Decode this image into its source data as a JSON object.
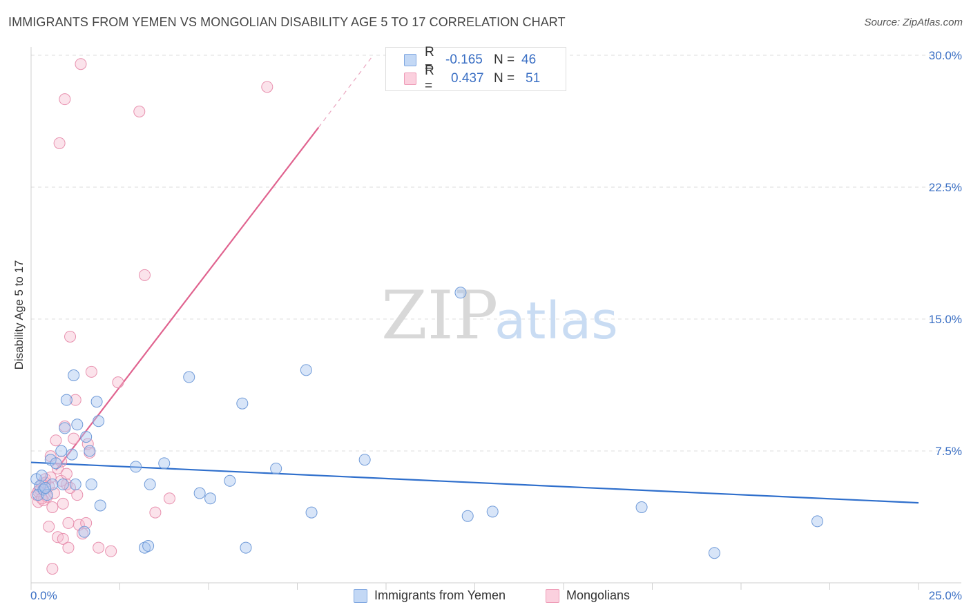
{
  "header": {
    "title": "IMMIGRANTS FROM YEMEN VS MONGOLIAN DISABILITY AGE 5 TO 17 CORRELATION CHART",
    "source": "Source: ZipAtlas.com"
  },
  "watermark": {
    "zip": "ZIP",
    "atlas": "atlas"
  },
  "legend_top": {
    "rows": [
      {
        "r_label": "R =",
        "r_value": "-0.165",
        "n_label": "N =",
        "n_value": "46",
        "color": "#a9c6f0"
      },
      {
        "r_label": "R =",
        "r_value": "0.437",
        "n_label": "N =",
        "n_value": "51",
        "color": "#f5b8cc"
      }
    ]
  },
  "legend_bottom": {
    "items": [
      {
        "label": "Immigrants from Yemen",
        "color": "#a9c6f0"
      },
      {
        "label": "Mongolians",
        "color": "#f5b8cc"
      }
    ]
  },
  "x_axis_labels": {
    "min": "0.0%",
    "max": "25.0%"
  },
  "chart_data": {
    "type": "scatter",
    "title": "IMMIGRANTS FROM YEMEN VS MONGOLIAN DISABILITY AGE 5 TO 17 CORRELATION CHART",
    "xlabel": "",
    "ylabel": "Disability Age 5 to 17",
    "xlim": [
      0,
      25
    ],
    "ylim": [
      0,
      31
    ],
    "y_ticks": [
      7.5,
      15.0,
      22.5,
      30.0
    ],
    "y_tick_labels": [
      "7.5%",
      "15.0%",
      "22.5%",
      "30.0%"
    ],
    "x_tick_labels": [
      "0.0%",
      "25.0%"
    ],
    "grid": true,
    "colors": {
      "blue": "#3a6fc4",
      "blue_line": "#2f6fcc",
      "pink_line": "#e0638f",
      "blue_fill": "#a9c6f0",
      "pink_fill": "#f5b8cc"
    },
    "series": [
      {
        "name": "Immigrants from Yemen",
        "r": -0.165,
        "n": 46,
        "trend": {
          "x0": 0.0,
          "y0": 6.85,
          "x1": 25.0,
          "y1": 4.55
        },
        "points": [
          [
            0.15,
            5.9
          ],
          [
            0.3,
            6.1
          ],
          [
            0.25,
            5.5
          ],
          [
            0.2,
            5.0
          ],
          [
            0.35,
            5.3
          ],
          [
            0.45,
            5.0
          ],
          [
            0.55,
            7.0
          ],
          [
            0.6,
            5.6
          ],
          [
            0.7,
            6.8
          ],
          [
            0.9,
            5.6
          ],
          [
            0.85,
            7.5
          ],
          [
            1.0,
            10.4
          ],
          [
            1.15,
            7.3
          ],
          [
            1.2,
            11.8
          ],
          [
            1.25,
            5.6
          ],
          [
            1.3,
            9.0
          ],
          [
            1.55,
            8.3
          ],
          [
            1.5,
            2.9
          ],
          [
            1.65,
            7.5
          ],
          [
            1.7,
            5.6
          ],
          [
            1.85,
            10.3
          ],
          [
            1.9,
            9.2
          ],
          [
            1.95,
            4.4
          ],
          [
            2.95,
            6.6
          ],
          [
            3.2,
            2.0
          ],
          [
            3.3,
            2.1
          ],
          [
            3.35,
            5.6
          ],
          [
            3.75,
            6.8
          ],
          [
            4.45,
            11.7
          ],
          [
            4.75,
            5.1
          ],
          [
            5.05,
            4.8
          ],
          [
            5.6,
            5.8
          ],
          [
            5.95,
            10.2
          ],
          [
            6.05,
            2.0
          ],
          [
            6.9,
            6.5
          ],
          [
            7.75,
            12.1
          ],
          [
            7.9,
            4.0
          ],
          [
            9.4,
            7.0
          ],
          [
            12.1,
            16.5
          ],
          [
            12.3,
            3.8
          ],
          [
            13.0,
            4.05
          ],
          [
            17.2,
            4.3
          ],
          [
            19.25,
            1.7
          ],
          [
            22.15,
            3.5
          ],
          [
            0.4,
            5.4
          ],
          [
            0.95,
            8.8
          ]
        ]
      },
      {
        "name": "Mongolians",
        "r": 0.437,
        "n": 51,
        "trend": {
          "x0": 0.7,
          "y0": 6.4,
          "x1": 8.1,
          "y1": 25.9,
          "dash_x1": 9.6,
          "dash_y1": 29.9
        },
        "points": [
          [
            0.15,
            5.0
          ],
          [
            0.2,
            4.6
          ],
          [
            0.25,
            5.3
          ],
          [
            0.3,
            5.6
          ],
          [
            0.35,
            4.7
          ],
          [
            0.4,
            5.9
          ],
          [
            0.45,
            4.9
          ],
          [
            0.5,
            3.2
          ],
          [
            0.55,
            7.2
          ],
          [
            0.6,
            4.3
          ],
          [
            0.6,
            0.8
          ],
          [
            0.7,
            8.1
          ],
          [
            0.75,
            6.5
          ],
          [
            0.75,
            2.6
          ],
          [
            0.8,
            25.0
          ],
          [
            0.85,
            6.9
          ],
          [
            0.9,
            4.5
          ],
          [
            0.9,
            2.5
          ],
          [
            0.95,
            27.5
          ],
          [
            0.95,
            8.9
          ],
          [
            1.0,
            5.6
          ],
          [
            1.05,
            3.4
          ],
          [
            1.05,
            2.0
          ],
          [
            1.1,
            14.0
          ],
          [
            1.2,
            8.2
          ],
          [
            1.25,
            10.4
          ],
          [
            1.3,
            5.0
          ],
          [
            1.35,
            3.3
          ],
          [
            1.4,
            29.5
          ],
          [
            1.45,
            2.8
          ],
          [
            1.55,
            3.4
          ],
          [
            1.6,
            7.9
          ],
          [
            1.65,
            7.4
          ],
          [
            1.7,
            12.0
          ],
          [
            1.9,
            2.0
          ],
          [
            2.25,
            1.8
          ],
          [
            2.45,
            11.4
          ],
          [
            3.05,
            26.8
          ],
          [
            3.2,
            17.5
          ],
          [
            3.5,
            4.0
          ],
          [
            3.9,
            4.8
          ],
          [
            6.65,
            28.2
          ],
          [
            0.2,
            5.2
          ],
          [
            0.3,
            4.8
          ],
          [
            0.5,
            5.5
          ],
          [
            0.65,
            5.1
          ],
          [
            0.85,
            5.8
          ],
          [
            1.1,
            5.4
          ],
          [
            0.4,
            5.7
          ],
          [
            0.55,
            6.0
          ],
          [
            1.0,
            6.2
          ]
        ]
      }
    ]
  }
}
